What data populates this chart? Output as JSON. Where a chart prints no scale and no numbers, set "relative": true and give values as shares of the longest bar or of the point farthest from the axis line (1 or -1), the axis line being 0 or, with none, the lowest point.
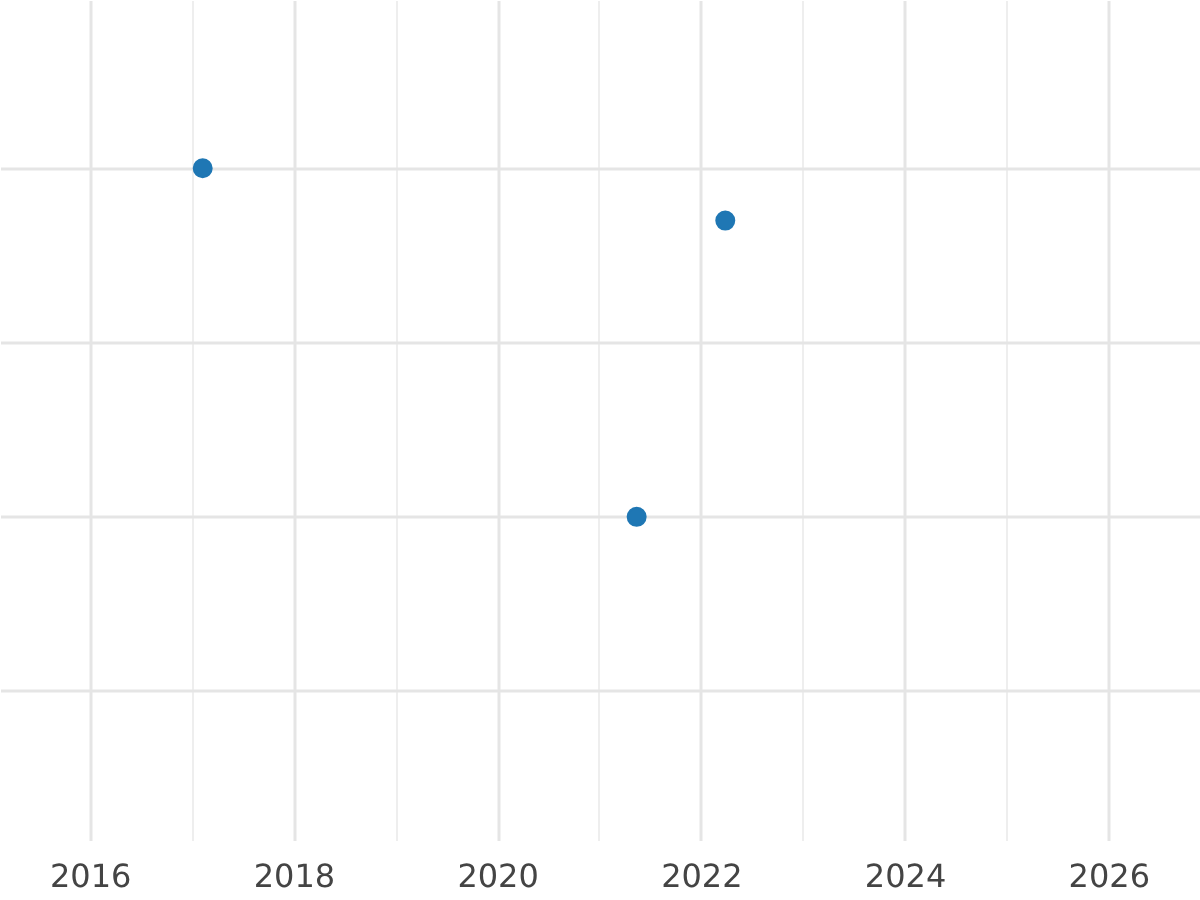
{
  "chart_data": {
    "type": "scatter",
    "relative": true,
    "x": [
      2017.1,
      2022.23,
      2021.36
    ],
    "series": [
      {
        "color": "#1f77b4",
        "values": [
          1,
          0.85,
          0
        ]
      }
    ],
    "xlim": [
      2015.12,
      2026.9
    ],
    "xticks": [
      2016,
      2018,
      2020,
      2022,
      2024,
      2026
    ],
    "grid": true,
    "marker": "circle",
    "tick_labels": "x"
  }
}
